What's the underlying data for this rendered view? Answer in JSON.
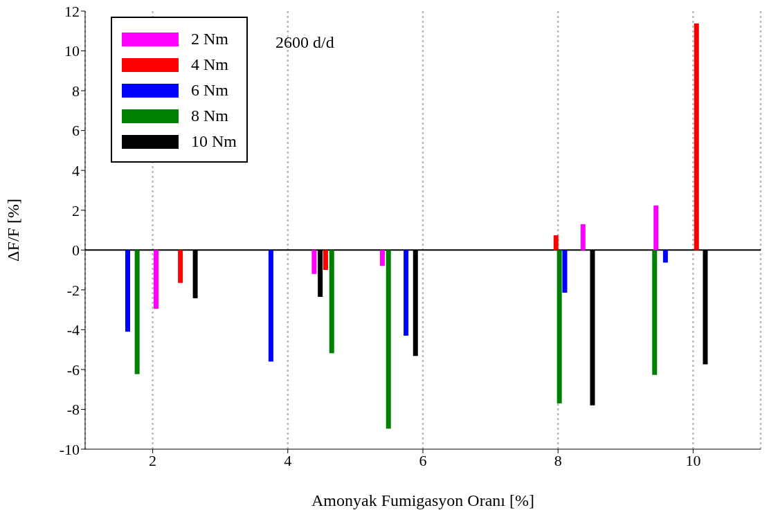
{
  "chart_data": {
    "type": "bar",
    "xlabel": "Amonyak Fumigasyon Oranı [%]",
    "ylabel": "ΔF/F [%]",
    "xlim": [
      1,
      11
    ],
    "xticks": [
      2,
      4,
      6,
      8,
      10
    ],
    "ylim": [
      -10,
      12
    ],
    "yticks": [
      -10,
      -8,
      -6,
      -4,
      -2,
      0,
      2,
      4,
      6,
      8,
      10,
      12
    ],
    "grid": "x",
    "legend": "top left",
    "annotations": [
      "2600 d/d"
    ],
    "ref_lines": [
      {
        "axis": "y",
        "value": 0,
        "color": "#000000"
      }
    ],
    "series": [
      {
        "name": "2 Nm",
        "color": "#ff00ff",
        "x": [
          2.05,
          4.39,
          5.4,
          8.37,
          9.45
        ],
        "values": [
          -2.95,
          -1.2,
          -0.8,
          1.3,
          2.24
        ]
      },
      {
        "name": "4 Nm",
        "color": "#ff0000",
        "x": [
          2.41,
          4.56,
          7.97,
          10.05
        ],
        "values": [
          -1.65,
          -1.0,
          0.74,
          11.38
        ]
      },
      {
        "name": "6 Nm",
        "color": "#0000ff",
        "x": [
          1.63,
          3.75,
          5.75,
          8.1,
          9.59
        ],
        "values": [
          -4.1,
          -5.6,
          -4.3,
          -2.14,
          -0.63
        ]
      },
      {
        "name": "8 Nm",
        "color": "#008000",
        "x": [
          1.77,
          4.65,
          5.49,
          8.02,
          9.43
        ],
        "values": [
          -6.23,
          -5.18,
          -8.97,
          -7.7,
          -6.27
        ]
      },
      {
        "name": "10 Nm",
        "color": "#000000",
        "x": [
          2.63,
          4.48,
          5.89,
          8.51,
          10.18
        ],
        "values": [
          -2.42,
          -2.35,
          -5.32,
          -7.8,
          -5.74
        ]
      }
    ]
  }
}
